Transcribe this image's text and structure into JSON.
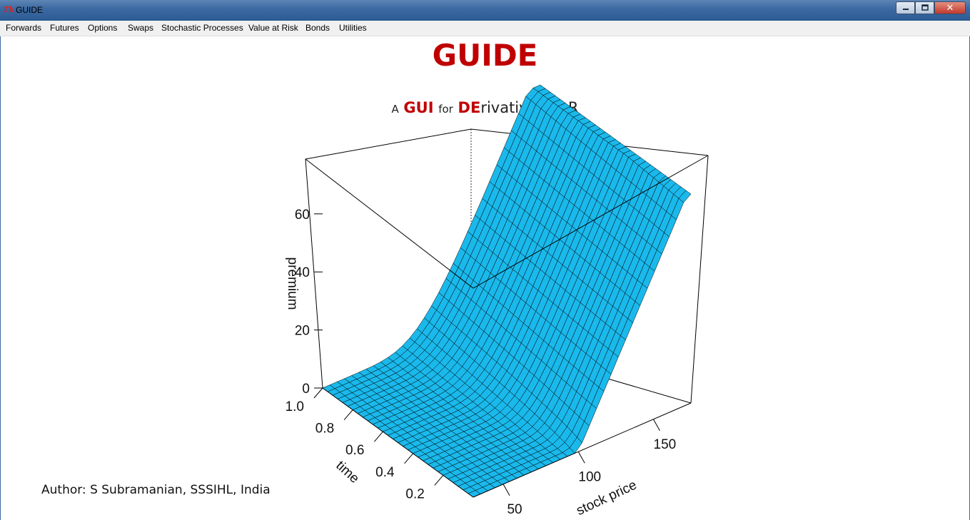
{
  "window": {
    "title": "GUIDE",
    "icon": "tk-feather-icon",
    "buttons": [
      "minimize-icon",
      "maximize-icon",
      "close-icon"
    ]
  },
  "menu": [
    "Forwards",
    "Futures",
    "Options",
    "Swaps",
    "Stochastic Processes",
    "Value at Risk",
    "Bonds",
    "Utilities"
  ],
  "header": {
    "title": "GUIDE",
    "subtitle": {
      "a": "A",
      "gui": "GUI",
      "for": "for",
      "de": "DE",
      "rest": "rivatives in R"
    }
  },
  "chart_data": {
    "type": "surface",
    "title": "",
    "xlabel": "stock price",
    "ylabel": "time",
    "zlabel": "premium",
    "x_ticks": [
      "50",
      "100",
      "150"
    ],
    "y_ticks": [
      "0.2",
      "0.4",
      "0.6",
      "0.8",
      "1.0"
    ],
    "z_ticks": [
      "0",
      "20",
      "40",
      "60"
    ],
    "xlim": [
      30,
      175
    ],
    "ylim": [
      0,
      1
    ],
    "zlim": [
      0,
      72
    ],
    "model": "call option premium, strike 100",
    "strike": 100,
    "surface_color": "#1ab9ec",
    "wire_color": "#000000"
  },
  "footer": {
    "author": "Author: S Subramanian, SSSIHL, India"
  }
}
